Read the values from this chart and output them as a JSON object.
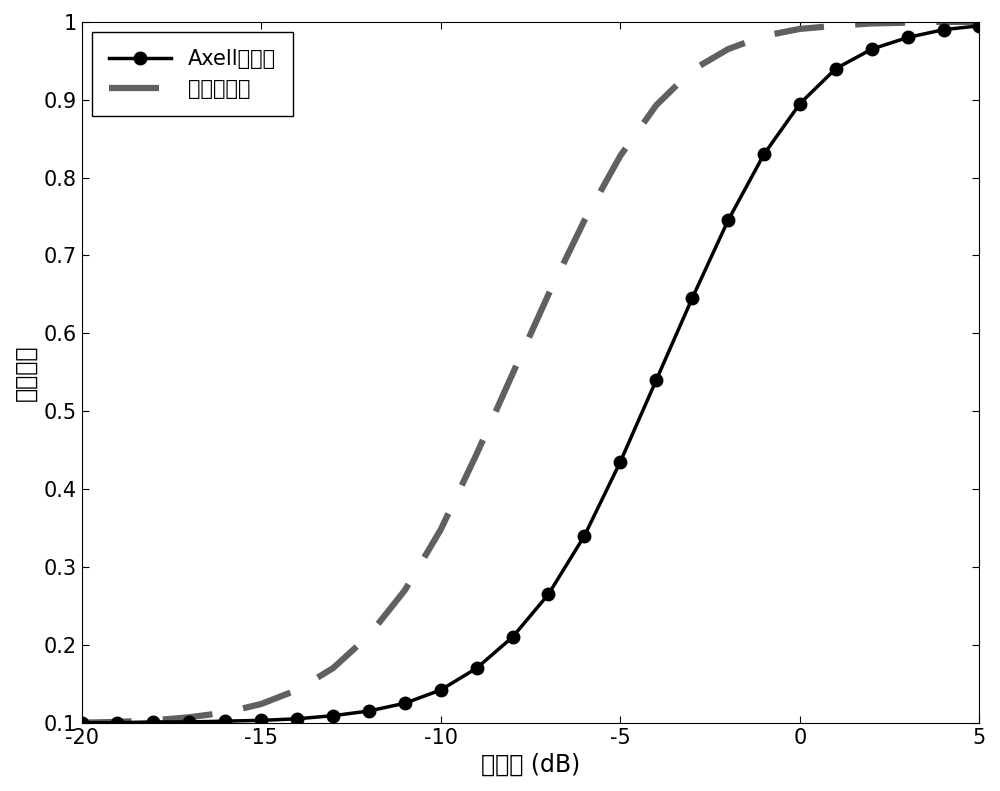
{
  "xlim": [
    -20,
    5
  ],
  "ylim": [
    0.1,
    1.0
  ],
  "xlabel": "信噪比 (dB)",
  "ylabel": "检测概率",
  "xticks": [
    -20,
    -15,
    -10,
    -5,
    0,
    5
  ],
  "yticks": [
    0.1,
    0.2,
    0.3,
    0.4,
    0.5,
    0.6,
    0.7,
    0.8,
    0.9,
    1.0
  ],
  "line1_label": "Axell的方法",
  "line2_label": "本发明方法",
  "line1_color": "#000000",
  "line2_color": "#606060",
  "background_color": "#ffffff",
  "snr_values": [
    -20,
    -19,
    -18,
    -17,
    -16,
    -15,
    -14,
    -13,
    -12,
    -11,
    -10,
    -9,
    -8,
    -7,
    -6,
    -5,
    -4,
    -3,
    -2,
    -1,
    0,
    1,
    2,
    3,
    4,
    5
  ],
  "axell_values": [
    0.1,
    0.1,
    0.101,
    0.101,
    0.102,
    0.103,
    0.105,
    0.109,
    0.115,
    0.125,
    0.142,
    0.17,
    0.21,
    0.265,
    0.34,
    0.435,
    0.54,
    0.645,
    0.745,
    0.83,
    0.895,
    0.94,
    0.965,
    0.98,
    0.99,
    0.995
  ],
  "invention_values": [
    0.1,
    0.101,
    0.103,
    0.107,
    0.113,
    0.124,
    0.142,
    0.17,
    0.212,
    0.27,
    0.348,
    0.445,
    0.548,
    0.65,
    0.745,
    0.828,
    0.893,
    0.938,
    0.965,
    0.982,
    0.991,
    0.995,
    0.998,
    0.999,
    1.0,
    1.0
  ],
  "tick_fontsize": 15,
  "label_fontsize": 17,
  "legend_fontsize": 15,
  "linewidth_solid": 2.5,
  "linewidth_dash": 4.5,
  "markersize": 9
}
